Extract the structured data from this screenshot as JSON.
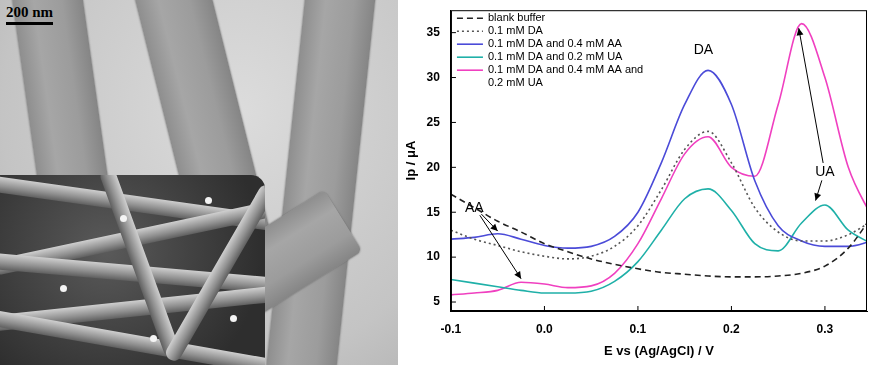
{
  "micrograph": {
    "scale_bar": "200 nm"
  },
  "chart_data": {
    "type": "line",
    "x_label": "E vs (Ag/AgCl) / V",
    "y_label": "Ip / μA",
    "xlim": [
      -0.1,
      0.345
    ],
    "xticks": [
      -0.1,
      {
        "value": 0,
        "label": "0.0"
      },
      0.1,
      0.2,
      0.3
    ],
    "ylim": [
      4,
      37.5
    ],
    "yticks": [
      5,
      10,
      15,
      20,
      25,
      30,
      35
    ],
    "grid": false,
    "legend": "upper left",
    "x": [
      -0.1,
      -0.075,
      -0.05,
      -0.025,
      0,
      0.025,
      0.05,
      0.075,
      0.1,
      0.125,
      0.15,
      0.175,
      0.2,
      0.225,
      0.25,
      0.275,
      0.3,
      0.325,
      0.35
    ],
    "series": [
      {
        "name": "blank buffer",
        "color": "#222222",
        "line_style": "dashed",
        "values": [
          17,
          15.5,
          14,
          12.8,
          11.5,
          10.6,
          9.8,
          9.2,
          8.7,
          8.3,
          8.1,
          7.9,
          7.8,
          7.8,
          7.9,
          8.2,
          9,
          11,
          14.5
        ]
      },
      {
        "name": "0.1 mM DA",
        "color": "#555555",
        "line_style": "dotted",
        "values": [
          13,
          12,
          11.3,
          10.6,
          10.1,
          9.8,
          10.1,
          11.2,
          13.5,
          17.5,
          22,
          24,
          20.5,
          15.5,
          12.8,
          11.8,
          11.8,
          12.5,
          14
        ]
      },
      {
        "name": "0.1 mM DA and 0.4 mM AA",
        "color": "#4b4bd8",
        "line_style": "solid",
        "values": [
          12,
          12.2,
          12.6,
          12,
          11.3,
          11,
          11.2,
          12.3,
          15,
          20.5,
          27,
          30.8,
          27,
          18.5,
          13.5,
          11.8,
          11.2,
          11.2,
          11.8
        ]
      },
      {
        "name": "0.1 mM DA and 0.2 mM UA",
        "color": "#1fb0a8",
        "line_style": "solid",
        "values": [
          7.5,
          7.1,
          6.7,
          6.3,
          6,
          6,
          6.2,
          7.3,
          9.5,
          13,
          16.5,
          17.6,
          15.2,
          11.5,
          10.7,
          13.8,
          15.8,
          13,
          11.5
        ]
      },
      {
        "name": "0.1 mM DA and 0.4 mM AA and 0.2 mM UA",
        "color": "#f040c0",
        "line_style": "solid",
        "values": [
          5.8,
          6,
          6.3,
          7.2,
          7,
          6.6,
          6.8,
          8.2,
          11.5,
          16.5,
          21.5,
          23.4,
          20,
          19,
          27,
          36,
          30,
          20,
          14.5
        ]
      }
    ],
    "annotations": [
      {
        "text": "DA",
        "x": 0.17,
        "y": 33,
        "arrows": []
      },
      {
        "text": "AA",
        "x": -0.075,
        "y": 15.5,
        "arrows": [
          {
            "x": -0.05,
            "y": 12.9
          },
          {
            "x": -0.025,
            "y": 7.6
          }
        ]
      },
      {
        "text": "UA",
        "x": 0.3,
        "y": 19.5,
        "arrows": [
          {
            "x": 0.272,
            "y": 35.5
          },
          {
            "x": 0.29,
            "y": 16.3
          }
        ]
      }
    ]
  }
}
